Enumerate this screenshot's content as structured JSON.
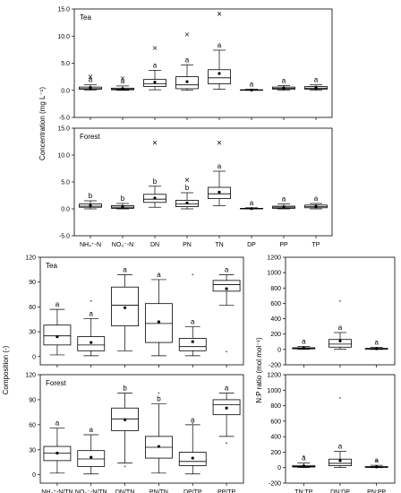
{
  "chart_data": [
    {
      "id": "conc_tea",
      "type": "box",
      "title": "Tea",
      "ylabel": "Concentration (mg L⁻¹)",
      "ylim": [
        -5.0,
        15.0
      ],
      "yticks": [
        -5.0,
        0.0,
        5.0,
        10.0,
        15.0
      ],
      "ytick_labels": [
        "-5.0",
        "0.0",
        "5.0",
        "10.0",
        "15.0"
      ],
      "categories": [
        "NH4-N",
        "NO3-N",
        "DN",
        "PN",
        "TN",
        "DP",
        "PP",
        "TP"
      ],
      "boxes": [
        {
          "q1": 0.2,
          "median": 0.3,
          "q3": 0.6,
          "whisker_low": 0.0,
          "whisker_high": 1.0,
          "mean": 0.5,
          "outliers": [
            2.5
          ],
          "sig": "a"
        },
        {
          "q1": 0.1,
          "median": 0.2,
          "q3": 0.4,
          "whisker_low": 0.0,
          "whisker_high": 0.8,
          "mean": 0.3,
          "outliers": [
            2.2
          ],
          "sig": "a"
        },
        {
          "q1": 0.7,
          "median": 1.2,
          "q3": 2.0,
          "whisker_low": 0.1,
          "whisker_high": 3.7,
          "mean": 1.5,
          "outliers": [
            7.8
          ],
          "sig": "a"
        },
        {
          "q1": 0.3,
          "median": 1.0,
          "q3": 2.5,
          "whisker_low": 0.0,
          "whisker_high": 4.7,
          "mean": 1.6,
          "outliers": [
            10.3
          ],
          "sig": "a"
        },
        {
          "q1": 1.2,
          "median": 2.3,
          "q3": 3.8,
          "whisker_low": 0.2,
          "whisker_high": 7.4,
          "mean": 3.1,
          "outliers": [
            14.1
          ],
          "sig": "a"
        },
        {
          "q1": 0.0,
          "median": 0.05,
          "q3": 0.1,
          "whisker_low": 0.0,
          "whisker_high": 0.2,
          "mean": 0.05,
          "outliers": [],
          "sig": "a"
        },
        {
          "q1": 0.2,
          "median": 0.35,
          "q3": 0.6,
          "whisker_low": 0.0,
          "whisker_high": 0.9,
          "mean": 0.4,
          "outliers": [],
          "sig": "a"
        },
        {
          "q1": 0.2,
          "median": 0.4,
          "q3": 0.7,
          "whisker_low": 0.0,
          "whisker_high": 1.0,
          "mean": 0.45,
          "outliers": [],
          "sig": "a"
        }
      ]
    },
    {
      "id": "conc_forest",
      "type": "box",
      "title": "Forest",
      "ylim": [
        -5.0,
        15.0
      ],
      "yticks": [
        -5.0,
        0.0,
        5.0,
        10.0,
        15.0
      ],
      "ytick_labels": [
        "-5.0",
        "0.0",
        "5.0",
        "10.0",
        "15.0"
      ],
      "categories": [
        "NH4-N",
        "NO3-N",
        "DN",
        "PN",
        "TN",
        "DP",
        "PP",
        "TP"
      ],
      "xtick_labels": [
        "NH₄⁺-N",
        "NO₃⁻-N",
        "DN",
        "PN",
        "TN",
        "DP",
        "PP",
        "TP"
      ],
      "boxes": [
        {
          "q1": 0.3,
          "median": 0.5,
          "q3": 0.9,
          "whisker_low": 0.0,
          "whisker_high": 1.5,
          "mean": 0.6,
          "outliers": [],
          "sig": "b"
        },
        {
          "q1": 0.1,
          "median": 0.3,
          "q3": 0.6,
          "whisker_low": 0.0,
          "whisker_high": 1.0,
          "mean": 0.4,
          "outliers": [],
          "sig": "b"
        },
        {
          "q1": 1.2,
          "median": 1.8,
          "q3": 2.7,
          "whisker_low": 0.3,
          "whisker_high": 4.2,
          "mean": 2.0,
          "outliers": [
            12.3
          ],
          "sig": "b"
        },
        {
          "q1": 0.4,
          "median": 0.9,
          "q3": 1.6,
          "whisker_low": 0.0,
          "whisker_high": 3.0,
          "mean": 1.1,
          "outliers": [
            5.4
          ],
          "sig": "b"
        },
        {
          "q1": 1.9,
          "median": 2.8,
          "q3": 4.0,
          "whisker_low": 0.6,
          "whisker_high": 7.0,
          "mean": 3.1,
          "outliers": [
            12.3
          ],
          "sig": "a"
        },
        {
          "q1": 0.0,
          "median": 0.05,
          "q3": 0.1,
          "whisker_low": 0.0,
          "whisker_high": 0.2,
          "mean": 0.05,
          "outliers": [],
          "sig": "a"
        },
        {
          "q1": 0.1,
          "median": 0.3,
          "q3": 0.5,
          "whisker_low": 0.0,
          "whisker_high": 0.9,
          "mean": 0.35,
          "outliers": [],
          "sig": "a"
        },
        {
          "q1": 0.2,
          "median": 0.4,
          "q3": 0.7,
          "whisker_low": 0.0,
          "whisker_high": 1.0,
          "mean": 0.45,
          "outliers": [],
          "sig": "a"
        }
      ]
    },
    {
      "id": "comp_tea",
      "type": "box",
      "title": "Tea",
      "ylabel": "Composition (-)",
      "ylim": [
        -10,
        120
      ],
      "yticks": [
        0,
        30,
        60,
        90,
        120
      ],
      "ytick_labels": [
        "0",
        "30",
        "60",
        "90",
        "120"
      ],
      "categories": [
        "NH4-N/TN",
        "NO3-N/TN",
        "DN/TN",
        "PN/TN",
        "DP/TP",
        "PP/TP"
      ],
      "boxes": [
        {
          "q1": 14,
          "median": 25,
          "q3": 38,
          "whisker_low": 2,
          "whisker_high": 57,
          "mean": 24,
          "outliers": [],
          "sig": "a"
        },
        {
          "q1": 7,
          "median": 14,
          "q3": 24,
          "whisker_low": 1,
          "whisker_high": 46,
          "mean": 17,
          "outliers": [
            67
          ],
          "sig": "a"
        },
        {
          "q1": 37,
          "median": 62,
          "q3": 84,
          "whisker_low": 7,
          "whisker_high": 99,
          "mean": 59,
          "outliers": [],
          "sig": "a"
        },
        {
          "q1": 17,
          "median": 40,
          "q3": 64,
          "whisker_low": 1,
          "whisker_high": 93,
          "mean": 42,
          "outliers": [],
          "sig": "a"
        },
        {
          "q1": 7,
          "median": 12,
          "q3": 22,
          "whisker_low": 1,
          "whisker_high": 36,
          "mean": 18,
          "outliers": [
            99
          ],
          "sig": "a"
        },
        {
          "q1": 79,
          "median": 87,
          "q3": 92,
          "whisker_low": 62,
          "whisker_high": 99,
          "mean": 82,
          "outliers": [
            6
          ],
          "sig": "a"
        }
      ]
    },
    {
      "id": "comp_forest",
      "type": "box",
      "title": "Forest",
      "ylim": [
        -10,
        120
      ],
      "yticks": [
        0,
        30,
        60,
        90,
        120
      ],
      "ytick_labels": [
        "0",
        "30",
        "60",
        "90",
        "120"
      ],
      "categories": [
        "NH4-N/TN",
        "NO3-N/TN",
        "DN/TN",
        "PN/TN",
        "DP/TP",
        "PP/TP"
      ],
      "xtick_labels": [
        "NH₄⁺-N/TN",
        "NO₃⁻-N/TN",
        "DN/TN",
        "PN/TN",
        "DP/TP",
        "PP/TP"
      ],
      "boxes": [
        {
          "q1": 17,
          "median": 26,
          "q3": 34,
          "whisker_low": 2,
          "whisker_high": 56,
          "mean": 26,
          "outliers": [],
          "sig": "a"
        },
        {
          "q1": 10,
          "median": 19,
          "q3": 29,
          "whisker_low": 1,
          "whisker_high": 48,
          "mean": 21,
          "outliers": [],
          "sig": "a"
        },
        {
          "q1": 53,
          "median": 67,
          "q3": 80,
          "whisker_low": 14,
          "whisker_high": 98,
          "mean": 66,
          "outliers": [
            10
          ],
          "sig": "b"
        },
        {
          "q1": 20,
          "median": 33,
          "q3": 46,
          "whisker_low": 2,
          "whisker_high": 85,
          "mean": 34,
          "outliers": [
            98
          ],
          "sig": "b"
        },
        {
          "q1": 11,
          "median": 16,
          "q3": 27,
          "whisker_low": 1,
          "whisker_high": 60,
          "mean": 20,
          "outliers": [
            62
          ],
          "sig": "a"
        },
        {
          "q1": 72,
          "median": 84,
          "q3": 90,
          "whisker_low": 46,
          "whisker_high": 98,
          "mean": 80,
          "outliers": [
            38
          ],
          "sig": "a"
        }
      ]
    },
    {
      "id": "np_tea",
      "type": "box",
      "ylabel": "N:P ratio (mol mol⁻¹)",
      "ylim": [
        -200,
        1200
      ],
      "yticks": [
        -200,
        0,
        200,
        400,
        600,
        800,
        1000,
        1200
      ],
      "ytick_labels": [
        "-200",
        "0",
        "200",
        "400",
        "600",
        "800",
        "1000",
        "1200"
      ],
      "categories": [
        "TN:TP",
        "DN:DP",
        "PN:PP"
      ],
      "boxes": [
        {
          "q1": 8,
          "median": 14,
          "q3": 22,
          "whisker_low": 2,
          "whisker_high": 40,
          "mean": 18,
          "outliers": [],
          "sig": "a"
        },
        {
          "q1": 30,
          "median": 70,
          "q3": 130,
          "whisker_low": 5,
          "whisker_high": 220,
          "mean": 110,
          "outliers": [
            630
          ],
          "sig": "a"
        },
        {
          "q1": 4,
          "median": 8,
          "q3": 14,
          "whisker_low": 0,
          "whisker_high": 28,
          "mean": 10,
          "outliers": [],
          "sig": "a"
        }
      ]
    },
    {
      "id": "np_forest",
      "type": "box",
      "ylim": [
        -200,
        1200
      ],
      "yticks": [
        -200,
        0,
        200,
        400,
        600,
        800,
        1000,
        1200
      ],
      "ytick_labels": [
        "-200",
        "0",
        "200",
        "400",
        "600",
        "800",
        "1000",
        "1200"
      ],
      "categories": [
        "TN:TP",
        "DN:DP",
        "PN:PP"
      ],
      "xtick_labels": [
        "TN:TP",
        "DN:DP",
        "PN:PP"
      ],
      "boxes": [
        {
          "q1": 8,
          "median": 15,
          "q3": 28,
          "whisker_low": 2,
          "whisker_high": 60,
          "mean": 22,
          "outliers": [
            150
          ],
          "sig": "a"
        },
        {
          "q1": 25,
          "median": 55,
          "q3": 110,
          "whisker_low": 3,
          "whisker_high": 210,
          "mean": 90,
          "outliers": [
            900
          ],
          "sig": "a"
        },
        {
          "q1": 3,
          "median": 7,
          "q3": 14,
          "whisker_low": 0,
          "whisker_high": 30,
          "mean": 10,
          "outliers": [
            90
          ],
          "sig": "a"
        }
      ]
    }
  ]
}
